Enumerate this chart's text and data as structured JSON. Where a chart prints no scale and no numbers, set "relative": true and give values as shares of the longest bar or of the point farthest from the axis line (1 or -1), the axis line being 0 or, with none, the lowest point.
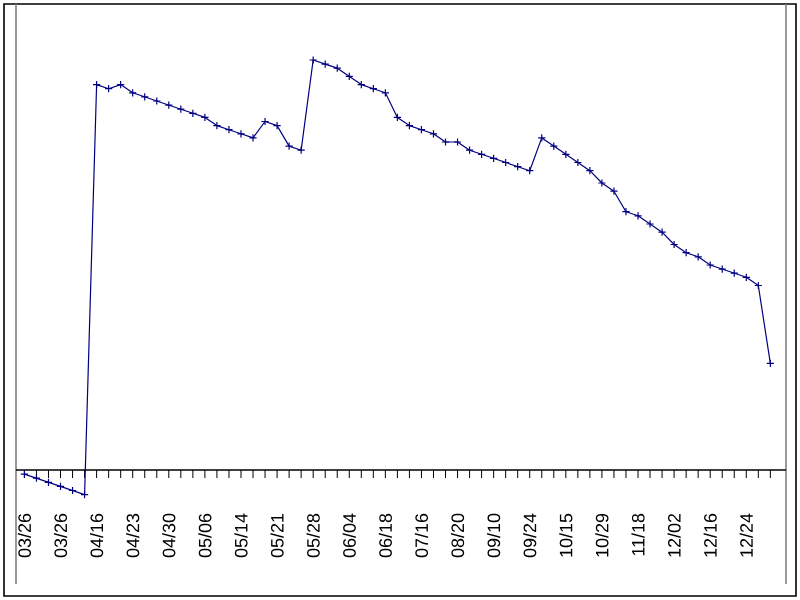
{
  "chart_data": {
    "type": "line",
    "relative": true,
    "color": "#000080",
    "marker": "cross",
    "line_style": "solid",
    "categories": [
      "03/26",
      null,
      null,
      "03/26",
      null,
      null,
      "04/16",
      null,
      null,
      "04/23",
      null,
      null,
      "04/30",
      null,
      null,
      "05/06",
      null,
      null,
      "05/14",
      null,
      null,
      "05/21",
      null,
      null,
      "05/28",
      null,
      null,
      "06/04",
      null,
      null,
      "06/18",
      null,
      null,
      "07/16",
      null,
      null,
      "08/20",
      null,
      null,
      "09/10",
      null,
      null,
      "09/24",
      null,
      null,
      "10/15",
      null,
      null,
      "10/29",
      null,
      null,
      "11/18",
      null,
      null,
      "12/02",
      null,
      null,
      "12/16",
      null,
      null,
      "12/24",
      null,
      null
    ],
    "values": [
      -0.01,
      -0.02,
      -0.03,
      -0.04,
      -0.05,
      -0.06,
      0.94,
      0.93,
      0.94,
      0.92,
      0.91,
      0.9,
      0.89,
      0.88,
      0.87,
      0.86,
      0.84,
      0.83,
      0.82,
      0.81,
      0.85,
      0.84,
      0.79,
      0.78,
      1.0,
      0.99,
      0.98,
      0.96,
      0.94,
      0.93,
      0.92,
      0.86,
      0.84,
      0.83,
      0.82,
      0.8,
      0.8,
      0.78,
      0.77,
      0.76,
      0.75,
      0.74,
      0.73,
      0.81,
      0.79,
      0.77,
      0.75,
      0.73,
      0.7,
      0.68,
      0.63,
      0.62,
      0.6,
      0.58,
      0.55,
      0.53,
      0.52,
      0.5,
      0.49,
      0.48,
      0.47,
      0.45,
      0.26
    ]
  }
}
